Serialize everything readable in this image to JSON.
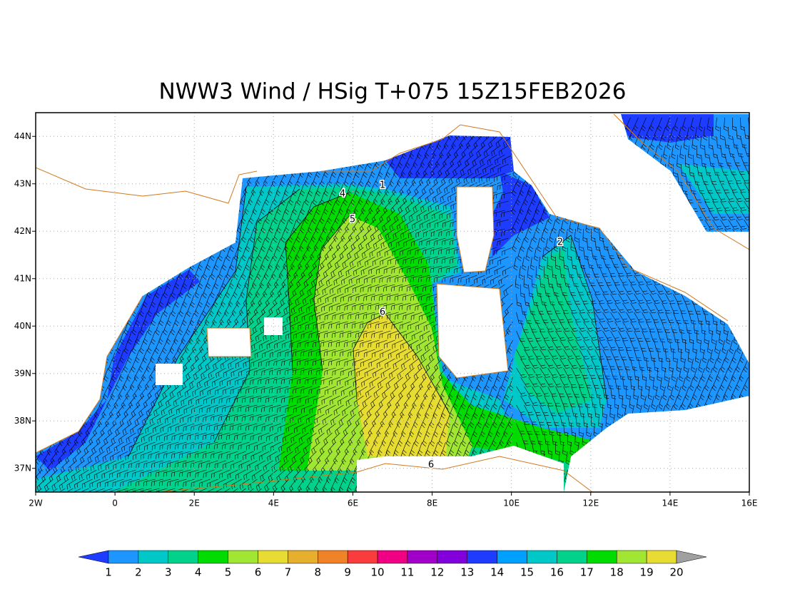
{
  "map": {
    "title": "NWW3 Wind / HSig T+075 15Z15FEB2026",
    "lonlim": [
      -2,
      16
    ],
    "latlim": [
      36.5,
      44.5
    ],
    "lon_ticks": [
      {
        "value": -2,
        "label": "2W"
      },
      0,
      {
        "value": 2,
        "label": "2E"
      },
      {
        "value": 4,
        "label": "4E"
      },
      {
        "value": 6,
        "label": "6E"
      },
      {
        "value": 8,
        "label": "8E"
      },
      {
        "value": 10,
        "label": "10E"
      },
      {
        "value": 12,
        "label": "12E"
      },
      {
        "value": 14,
        "label": "14E"
      },
      {
        "value": 16,
        "label": "16E"
      }
    ],
    "lat_ticks": [
      {
        "value": 37,
        "label": "37N"
      },
      {
        "value": 38,
        "label": "38N"
      },
      {
        "value": 39,
        "label": "39N"
      },
      {
        "value": 40,
        "label": "40N"
      },
      {
        "value": 41,
        "label": "41N"
      },
      {
        "value": 42,
        "label": "42N"
      },
      {
        "value": 43,
        "label": "43N"
      },
      {
        "value": 44,
        "label": "44N"
      }
    ],
    "contour_labels": [
      "4",
      "1",
      "5",
      "6",
      "6",
      "2"
    ],
    "colorbar": {
      "levels": [
        1,
        2,
        3,
        4,
        5,
        6,
        7,
        8,
        9,
        10,
        11,
        12,
        13,
        14,
        15,
        16,
        17,
        18,
        19,
        20
      ],
      "colors": [
        "#1e3cff",
        "#1e96ff",
        "#00c8c8",
        "#00d28c",
        "#00dc00",
        "#a0e632",
        "#e6dc32",
        "#e6af2d",
        "#f08228",
        "#fa3c3c",
        "#f00082",
        "#a000c8",
        "#8200dc",
        "#1e3cff",
        "#00a0ff",
        "#00c8c8",
        "#00d28c",
        "#00dc00",
        "#a0e632",
        "#e6dc32",
        "#a0a0a0"
      ]
    }
  }
}
